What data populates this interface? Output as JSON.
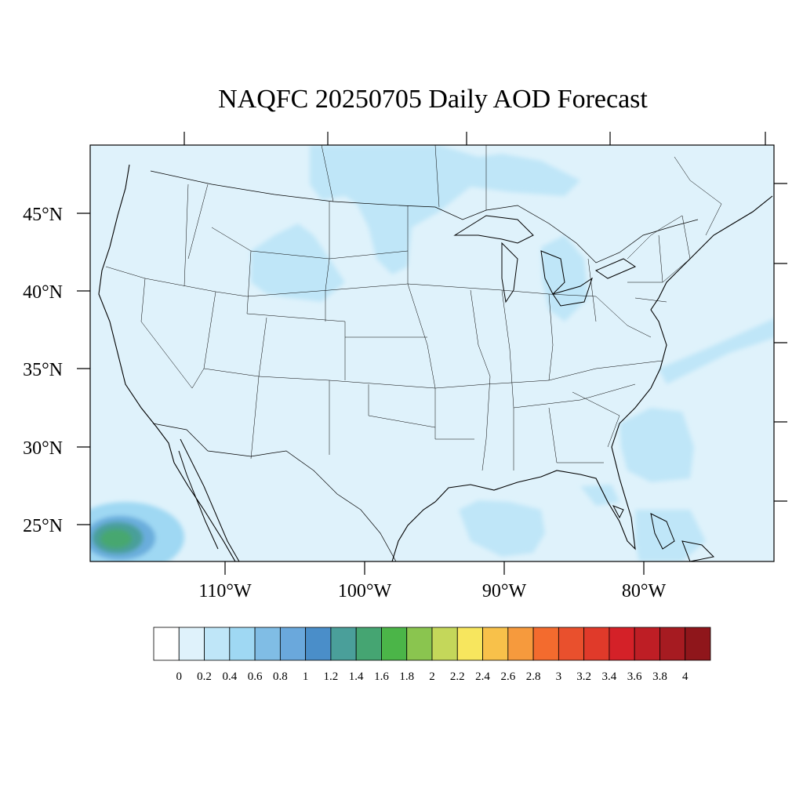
{
  "title": "NAQFC 20250705 Daily AOD Forecast",
  "map": {
    "background_color": "#dff2fb",
    "lat_ticks": [
      {
        "label": "45°N",
        "value": 45
      },
      {
        "label": "40°N",
        "value": 40
      },
      {
        "label": "35°N",
        "value": 35
      },
      {
        "label": "30°N",
        "value": 30
      },
      {
        "label": "25°N",
        "value": 25
      }
    ],
    "lon_ticks": [
      {
        "label": "110°W",
        "value": -110
      },
      {
        "label": "100°W",
        "value": -100
      },
      {
        "label": "90°W",
        "value": -90
      },
      {
        "label": "80°W",
        "value": -80
      }
    ],
    "plumes": [
      {
        "name": "northern-plains-plume",
        "color": "#bfe6f8"
      },
      {
        "name": "wyoming-plume",
        "color": "#bfe6f8"
      },
      {
        "name": "great-lakes-plume",
        "color": "#bfe6f8"
      },
      {
        "name": "atlantic-plume",
        "color": "#bfe6f8"
      },
      {
        "name": "gulf-plume",
        "color": "#bfe6f8"
      },
      {
        "name": "mexico-hotspot-outer",
        "color": "#9fd8f3"
      },
      {
        "name": "mexico-hotspot-mid",
        "color": "#6aaddc"
      },
      {
        "name": "mexico-hotspot-core",
        "color": "#4a9f9a"
      },
      {
        "name": "mexico-hotspot-peak",
        "color": "#47a770"
      }
    ]
  },
  "colorbar": {
    "labels": [
      "0",
      "0.2",
      "0.4",
      "0.6",
      "0.8",
      "1",
      "1.2",
      "1.4",
      "1.6",
      "1.8",
      "2",
      "2.2",
      "2.4",
      "2.6",
      "2.8",
      "3",
      "3.2",
      "3.4",
      "3.6",
      "3.8",
      "4"
    ],
    "colors": [
      "#ffffff",
      "#dff2fb",
      "#bfe6f8",
      "#9fd8f3",
      "#80bde5",
      "#6aa8dc",
      "#4a8ec9",
      "#4a9f9a",
      "#45a572",
      "#4bb548",
      "#8ac54f",
      "#c4d75a",
      "#f7e65e",
      "#f8c14a",
      "#f69a3d",
      "#f36b2e",
      "#e9502d",
      "#e03a2a",
      "#d42128",
      "#be1e25",
      "#a61b21",
      "#8f161b"
    ]
  }
}
